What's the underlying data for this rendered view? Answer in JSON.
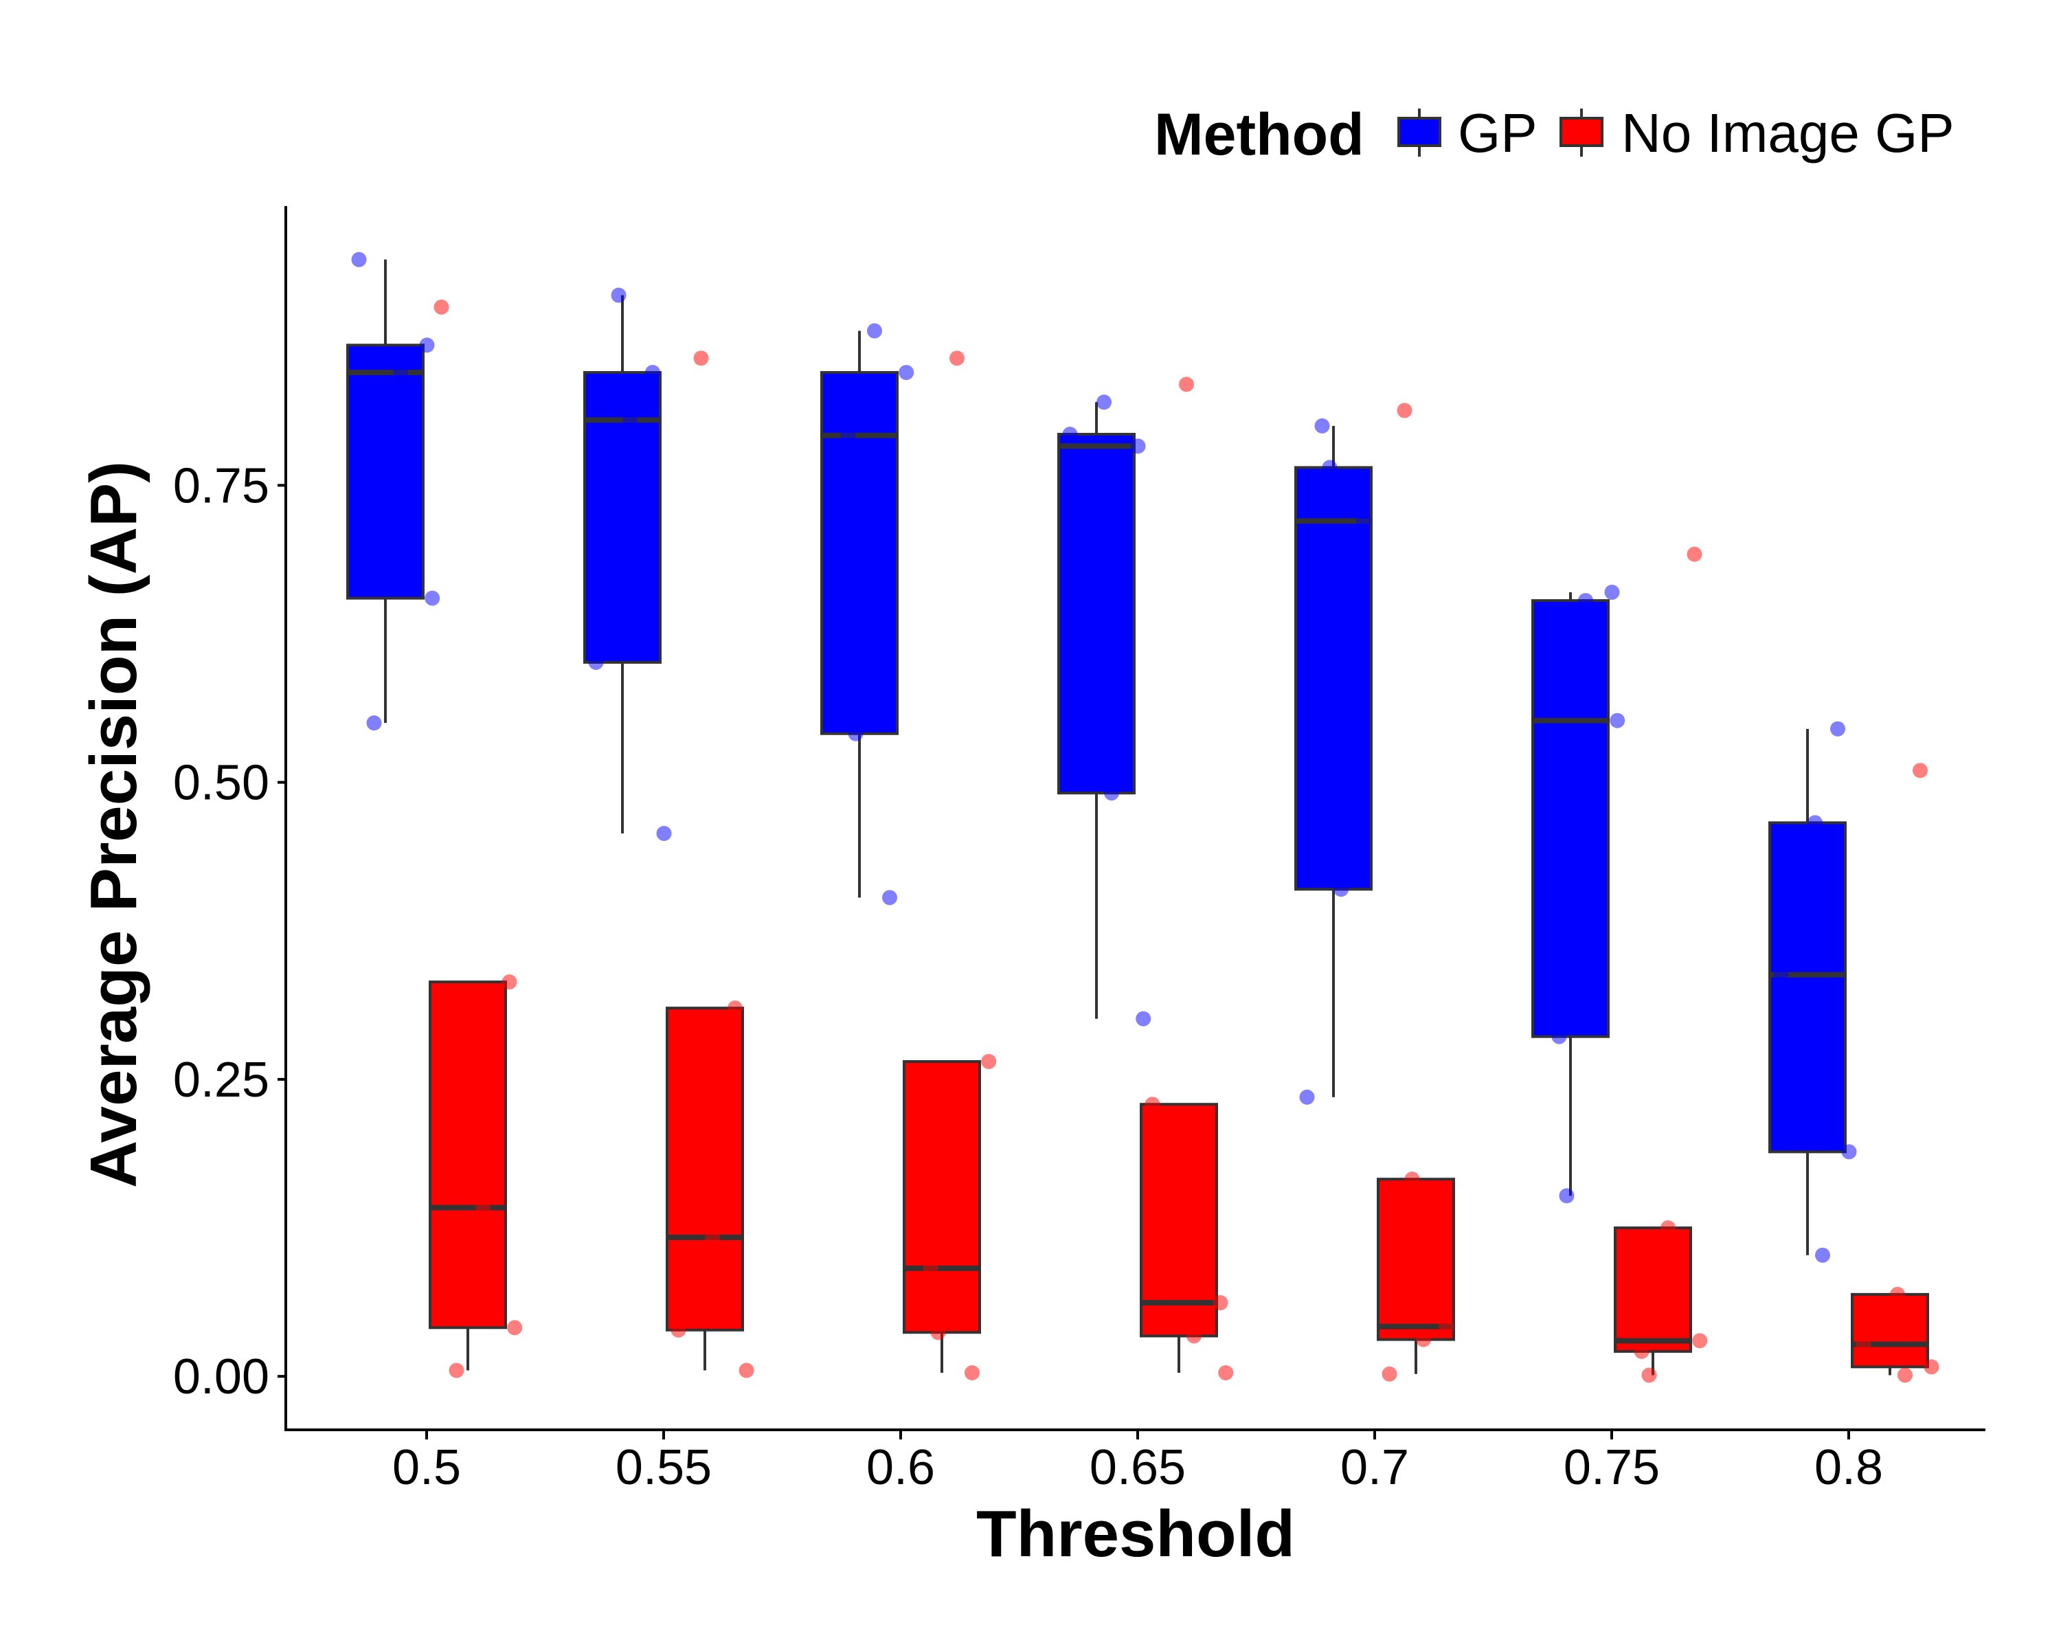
{
  "chart_data": {
    "type": "box",
    "xlabel": "Threshold",
    "ylabel": "Average Precision (AP)",
    "categories": [
      "0.5",
      "0.55",
      "0.6",
      "0.65",
      "0.7",
      "0.75",
      "0.8"
    ],
    "ylim": [
      -0.045,
      0.985
    ],
    "yticks": [
      "0.00",
      "0.25",
      "0.50",
      "0.75"
    ],
    "grid": false,
    "legend": {
      "title": "Method",
      "position": "top-right",
      "entries": [
        "GP",
        "No Image GP"
      ]
    },
    "series": [
      {
        "name": "GP",
        "color": "#0000FF",
        "boxes": [
          {
            "low": 0.55,
            "q1": 0.655,
            "median": 0.845,
            "q3": 0.868,
            "high": 0.94
          },
          {
            "low": 0.457,
            "q1": 0.601,
            "median": 0.805,
            "q3": 0.845,
            "high": 0.91
          },
          {
            "low": 0.403,
            "q1": 0.541,
            "median": 0.792,
            "q3": 0.845,
            "high": 0.88
          },
          {
            "low": 0.301,
            "q1": 0.491,
            "median": 0.783,
            "q3": 0.793,
            "high": 0.82
          },
          {
            "low": 0.235,
            "q1": 0.41,
            "median": 0.72,
            "q3": 0.765,
            "high": 0.8
          },
          {
            "low": 0.152,
            "q1": 0.286,
            "median": 0.552,
            "q3": 0.653,
            "high": 0.66
          },
          {
            "low": 0.102,
            "q1": 0.189,
            "median": 0.338,
            "q3": 0.466,
            "high": 0.545
          }
        ],
        "points": [
          [
            0.55,
            0.655,
            0.845,
            0.868,
            0.94
          ],
          [
            0.457,
            0.601,
            0.805,
            0.845,
            0.91
          ],
          [
            0.403,
            0.541,
            0.792,
            0.845,
            0.88
          ],
          [
            0.301,
            0.491,
            0.783,
            0.793,
            0.82
          ],
          [
            0.235,
            0.41,
            0.72,
            0.765,
            0.8
          ],
          [
            0.152,
            0.286,
            0.552,
            0.653,
            0.66
          ],
          [
            0.102,
            0.189,
            0.338,
            0.466,
            0.545
          ]
        ]
      },
      {
        "name": "No Image GP",
        "color": "#FF0000",
        "boxes": [
          {
            "low": 0.005,
            "q1": 0.041,
            "median": 0.142,
            "q3": 0.332,
            "high": 0.332
          },
          {
            "low": 0.005,
            "q1": 0.039,
            "median": 0.117,
            "q3": 0.31,
            "high": 0.31
          },
          {
            "low": 0.003,
            "q1": 0.037,
            "median": 0.091,
            "q3": 0.265,
            "high": 0.265
          },
          {
            "low": 0.003,
            "q1": 0.034,
            "median": 0.062,
            "q3": 0.229,
            "high": 0.229
          },
          {
            "low": 0.002,
            "q1": 0.031,
            "median": 0.042,
            "q3": 0.166,
            "high": 0.166
          },
          {
            "low": 0.001,
            "q1": 0.021,
            "median": 0.03,
            "q3": 0.125,
            "high": 0.125
          },
          {
            "low": 0.001,
            "q1": 0.008,
            "median": 0.027,
            "q3": 0.069,
            "high": 0.069
          }
        ],
        "points": [
          [
            0.005,
            0.041,
            0.142,
            0.332,
            0.9
          ],
          [
            0.005,
            0.039,
            0.117,
            0.31,
            0.857
          ],
          [
            0.003,
            0.037,
            0.091,
            0.265,
            0.857
          ],
          [
            0.003,
            0.034,
            0.062,
            0.229,
            0.835
          ],
          [
            0.002,
            0.031,
            0.042,
            0.166,
            0.813
          ],
          [
            0.001,
            0.021,
            0.03,
            0.125,
            0.692
          ],
          [
            0.001,
            0.008,
            0.027,
            0.069,
            0.51
          ]
        ]
      }
    ]
  }
}
